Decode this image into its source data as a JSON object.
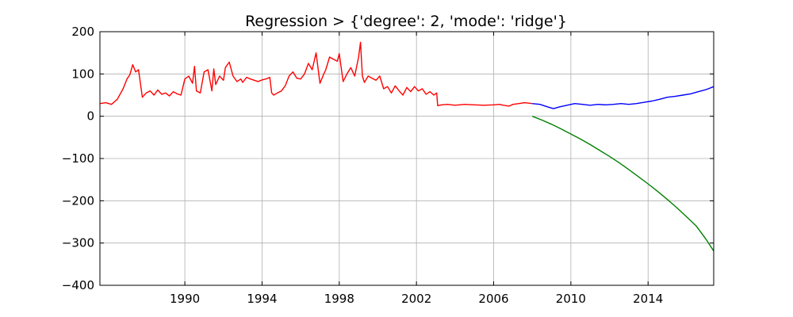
{
  "chart_data": {
    "type": "line",
    "title": "Regression > {'degree': 2, 'mode': 'ridge'}",
    "xlabel": "",
    "ylabel": "",
    "xlim": [
      1985.6,
      2017.4
    ],
    "ylim": [
      -400,
      200
    ],
    "grid": true,
    "x_ticks": [
      1990,
      1994,
      1998,
      2002,
      2006,
      2010,
      2014
    ],
    "y_ticks": [
      200,
      100,
      0,
      -100,
      -200,
      -300,
      -400
    ],
    "y_tick_labels": [
      "200",
      "100",
      "0",
      "−100",
      "−200",
      "−300",
      "−400"
    ],
    "series": [
      {
        "color": "#ff0000",
        "x": [
          1985.6,
          1985.9,
          1986.2,
          1986.5,
          1986.8,
          1987.0,
          1987.15,
          1987.3,
          1987.45,
          1987.6,
          1987.8,
          1988.0,
          1988.2,
          1988.4,
          1988.6,
          1988.8,
          1989.0,
          1989.2,
          1989.4,
          1989.6,
          1989.8,
          1990.0,
          1990.2,
          1990.4,
          1990.5,
          1990.6,
          1990.8,
          1991.0,
          1991.2,
          1991.4,
          1991.5,
          1991.6,
          1991.8,
          1992.0,
          1992.1,
          1992.3,
          1992.5,
          1992.7,
          1992.9,
          1993.0,
          1993.2,
          1993.4,
          1993.6,
          1993.8,
          1994.0,
          1994.2,
          1994.4,
          1994.5,
          1994.6,
          1994.8,
          1995.0,
          1995.2,
          1995.4,
          1995.6,
          1995.8,
          1996.0,
          1996.2,
          1996.4,
          1996.6,
          1996.8,
          1997.0,
          1997.2,
          1997.3,
          1997.5,
          1997.7,
          1997.9,
          1998.0,
          1998.2,
          1998.4,
          1998.6,
          1998.8,
          1999.0,
          1999.1,
          1999.2,
          1999.3,
          1999.5,
          1999.7,
          1999.9,
          2000.1,
          2000.3,
          2000.5,
          2000.7,
          2000.9,
          2001.1,
          2001.3,
          2001.5,
          2001.7,
          2001.9,
          2002.1,
          2002.3,
          2002.5,
          2002.7,
          2002.9,
          2003.05,
          2003.1,
          2003.3,
          2003.6,
          2004.0,
          2004.5,
          2005.0,
          2005.5,
          2006.0,
          2006.3,
          2006.5,
          2006.8,
          2007.0,
          2007.3,
          2007.6,
          2008.0
        ],
        "values": [
          30,
          32,
          28,
          40,
          65,
          88,
          98,
          122,
          105,
          110,
          45,
          55,
          60,
          50,
          62,
          52,
          55,
          48,
          58,
          53,
          50,
          88,
          95,
          78,
          118,
          60,
          55,
          105,
          110,
          60,
          112,
          75,
          95,
          85,
          115,
          128,
          95,
          82,
          88,
          80,
          92,
          88,
          85,
          82,
          86,
          88,
          92,
          55,
          50,
          55,
          60,
          72,
          95,
          105,
          90,
          88,
          100,
          125,
          110,
          150,
          78,
          100,
          110,
          140,
          135,
          130,
          148,
          82,
          100,
          115,
          95,
          140,
          175,
          95,
          80,
          95,
          90,
          85,
          95,
          65,
          70,
          55,
          72,
          60,
          50,
          68,
          58,
          70,
          60,
          65,
          52,
          58,
          50,
          55,
          25,
          27,
          28,
          26,
          28,
          27,
          26,
          27,
          28,
          26,
          24,
          28,
          30,
          32,
          30
        ]
      },
      {
        "color": "#0000ff",
        "x": [
          2008.0,
          2008.4,
          2008.8,
          2009.1,
          2009.4,
          2009.8,
          2010.2,
          2010.6,
          2011.0,
          2011.4,
          2011.8,
          2012.2,
          2012.6,
          2013.0,
          2013.4,
          2013.8,
          2014.2,
          2014.6,
          2015.0,
          2015.4,
          2015.8,
          2016.2,
          2016.6,
          2017.0,
          2017.4
        ],
        "values": [
          30,
          28,
          22,
          18,
          22,
          26,
          30,
          28,
          26,
          28,
          27,
          28,
          30,
          28,
          30,
          33,
          36,
          40,
          45,
          47,
          50,
          53,
          58,
          63,
          70
        ]
      },
      {
        "color": "#008000",
        "x": [
          2008.0,
          2008.5,
          2009.0,
          2009.5,
          2010.0,
          2010.5,
          2011.0,
          2011.5,
          2012.0,
          2012.5,
          2013.0,
          2013.5,
          2014.0,
          2014.5,
          2015.0,
          2015.5,
          2016.0,
          2016.5,
          2017.0,
          2017.4
        ],
        "values": [
          0,
          -9,
          -19,
          -30,
          -42,
          -54,
          -67,
          -81,
          -95,
          -110,
          -126,
          -143,
          -160,
          -178,
          -197,
          -217,
          -238,
          -260,
          -291,
          -319
        ]
      }
    ]
  }
}
